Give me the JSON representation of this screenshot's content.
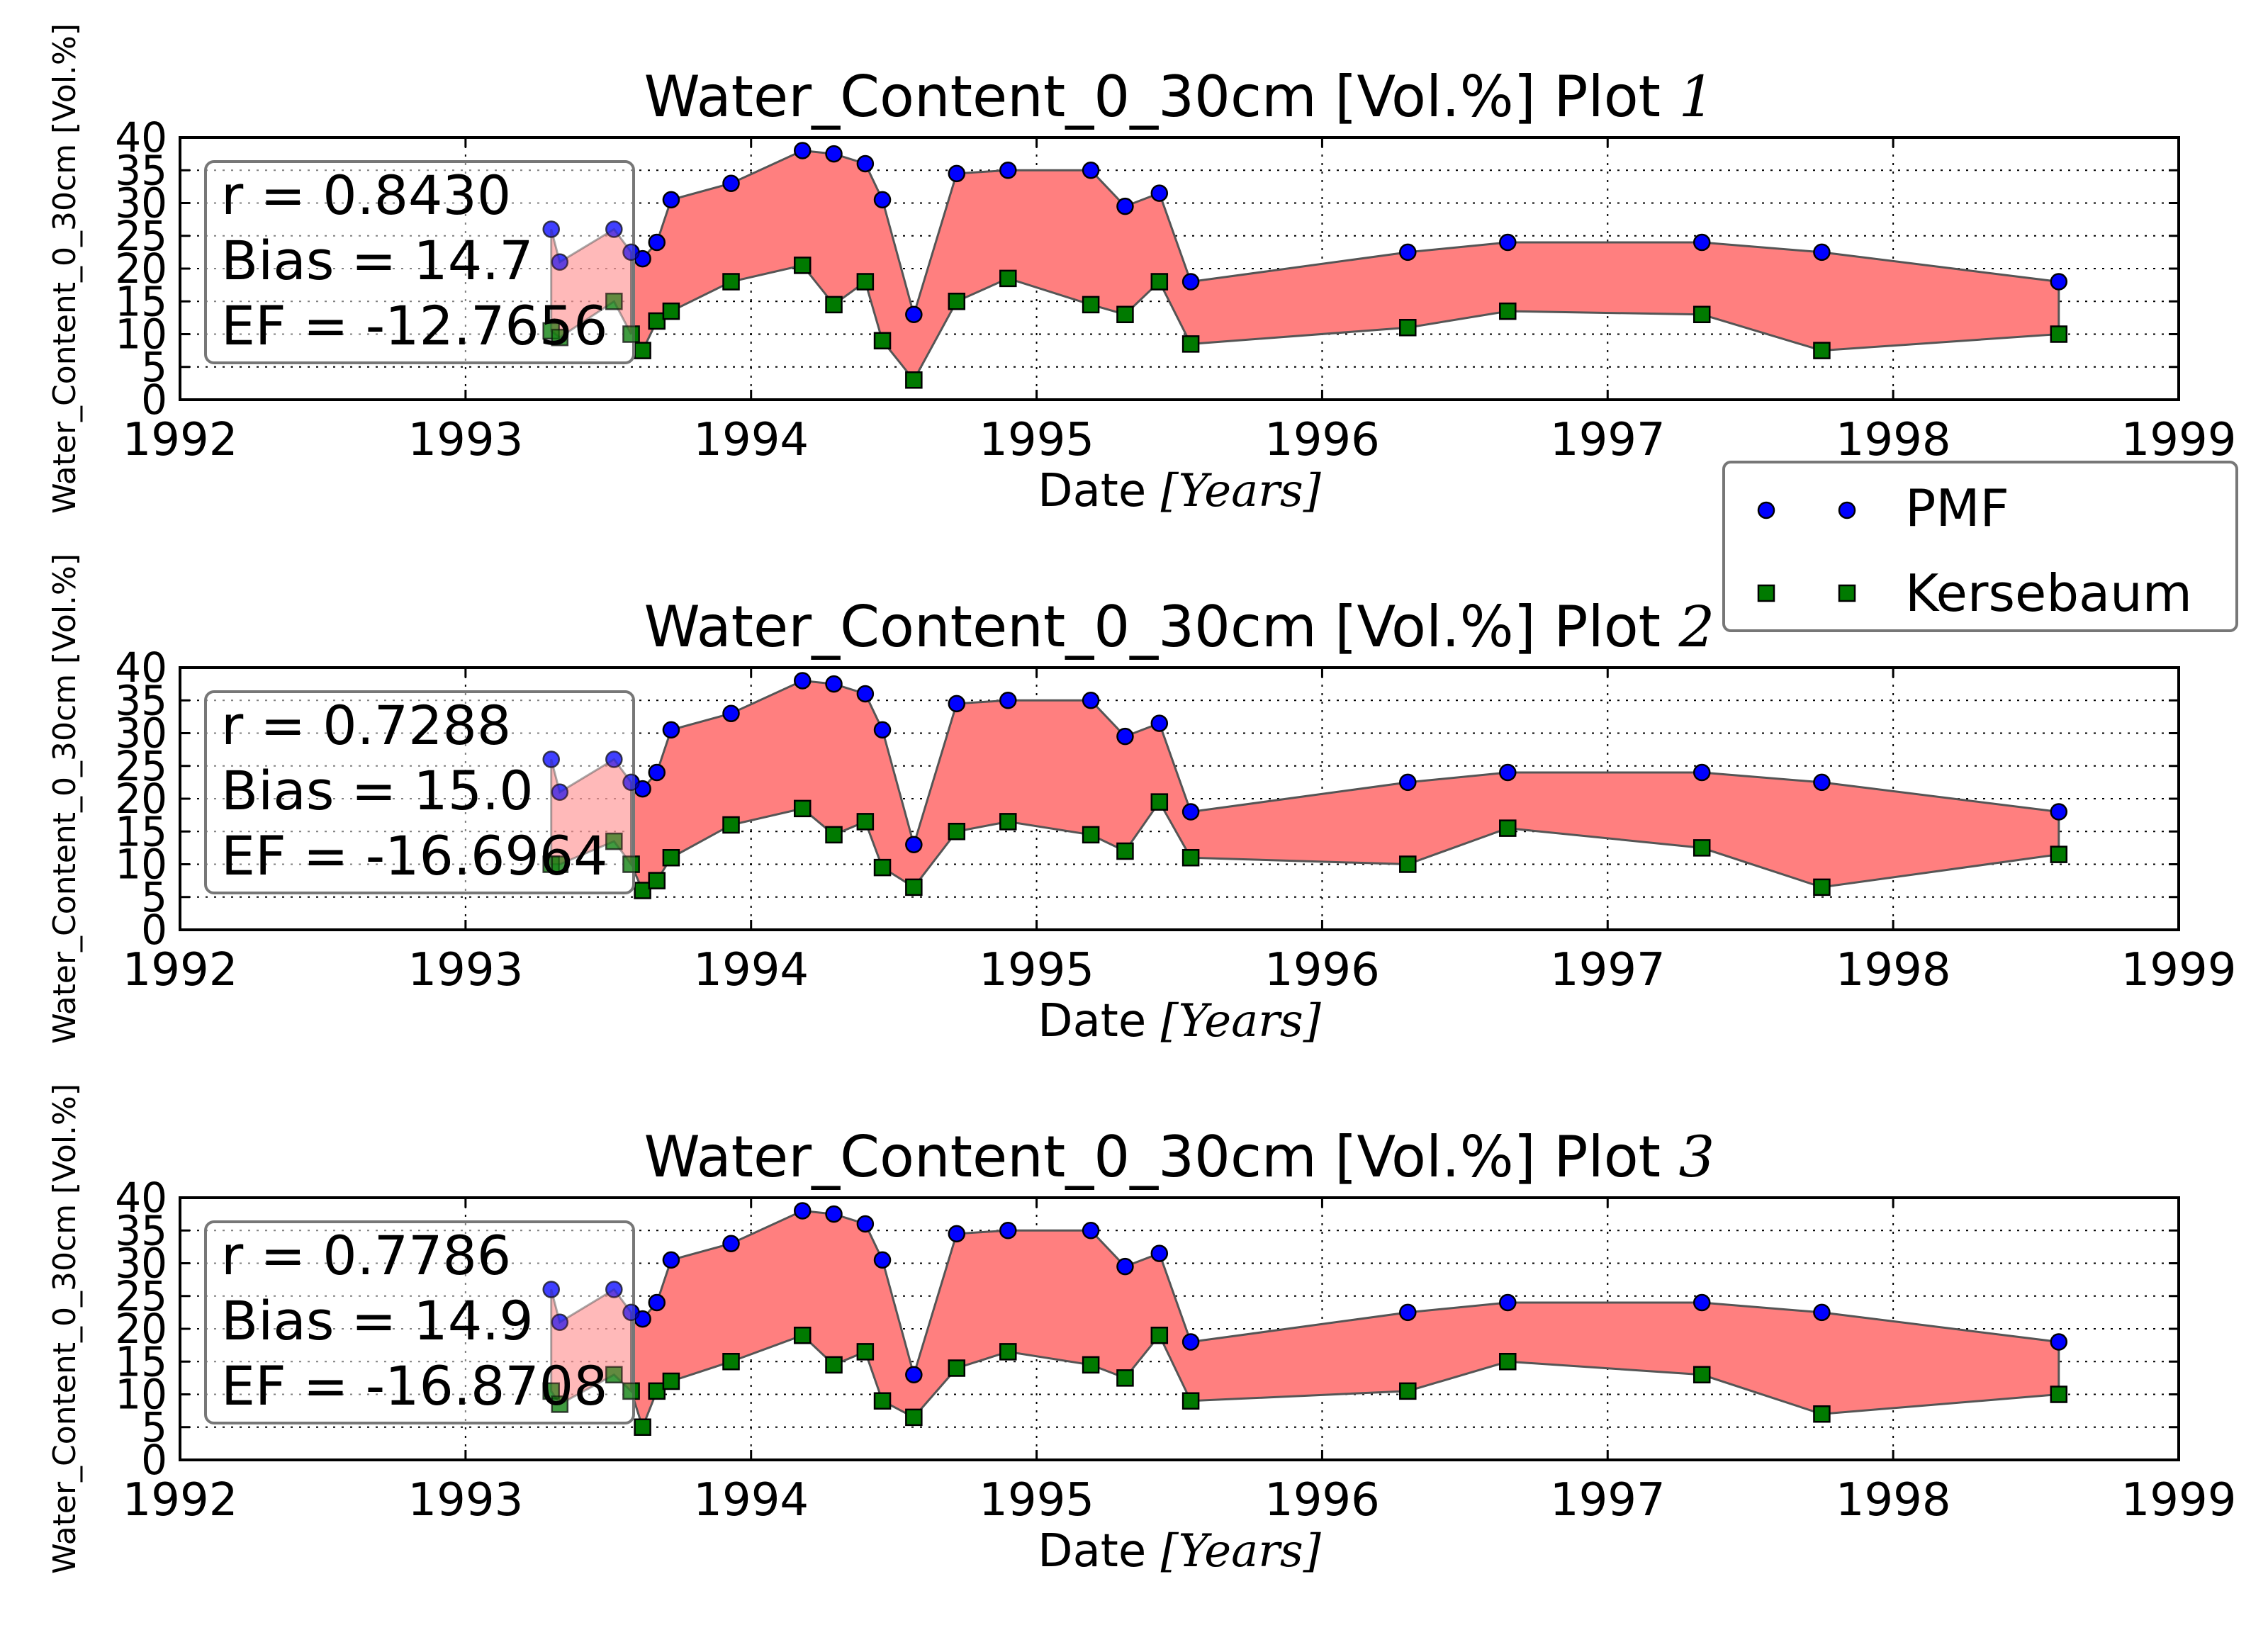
{
  "colors": {
    "pmf": "#0000ff",
    "kersebaum": "#007a00",
    "fill": "#ff7f7f",
    "fill_faint": "#ffbfbf"
  },
  "legend": {
    "entries": [
      "PMF",
      "Kersebaum"
    ],
    "placement": "right, between plot 1 and plot 2"
  },
  "chart_data": [
    {
      "type": "scatter",
      "title": "Water_Content_0_30cm [Vol.%] Plot ",
      "title_suffix": "1",
      "xlabel": "Date ",
      "xlabel_unit": "[Years]",
      "ylabel": "Water_Content_0_30cm [Vol.%]",
      "xlim": [
        1992,
        1999
      ],
      "ylim": [
        0,
        40
      ],
      "xticks": [
        "1992",
        "1993",
        "1994",
        "1995",
        "1996",
        "1997",
        "1998",
        "1999"
      ],
      "yticks": [
        "0",
        "5",
        "10",
        "15",
        "20",
        "25",
        "30",
        "35",
        "40"
      ],
      "grid": true,
      "stats": [
        "r = 0.8430",
        "Bias = 14.7",
        "EF = -12.7656"
      ],
      "x": [
        1993.3,
        1993.33,
        1993.52,
        1993.58,
        1993.62,
        1993.67,
        1993.72,
        1993.93,
        1994.18,
        1994.29,
        1994.4,
        1994.46,
        1994.57,
        1994.72,
        1994.9,
        1995.19,
        1995.31,
        1995.43,
        1995.54,
        1996.3,
        1996.65,
        1997.33,
        1997.75,
        1998.58
      ],
      "series": [
        {
          "name": "PMF",
          "values": [
            26,
            21,
            26,
            22.5,
            21.5,
            24,
            30.5,
            33,
            38,
            37.5,
            36,
            30.5,
            13,
            34.5,
            35,
            35,
            29.5,
            31.5,
            18,
            22.5,
            24,
            24,
            22.5,
            18
          ]
        },
        {
          "name": "Kersebaum",
          "values": [
            10.5,
            9.5,
            15,
            10,
            7.5,
            12,
            13.5,
            18,
            20.5,
            14.5,
            18,
            9,
            3,
            15,
            18.5,
            14.5,
            13,
            18,
            8.5,
            11,
            13.5,
            13,
            7.5,
            10
          ]
        }
      ]
    },
    {
      "type": "scatter",
      "title": "Water_Content_0_30cm [Vol.%] Plot ",
      "title_suffix": "2",
      "xlabel": "Date ",
      "xlabel_unit": "[Years]",
      "ylabel": "Water_Content_0_30cm [Vol.%]",
      "xlim": [
        1992,
        1999
      ],
      "ylim": [
        0,
        40
      ],
      "xticks": [
        "1992",
        "1993",
        "1994",
        "1995",
        "1996",
        "1997",
        "1998",
        "1999"
      ],
      "yticks": [
        "0",
        "5",
        "10",
        "15",
        "20",
        "25",
        "30",
        "35",
        "40"
      ],
      "grid": true,
      "stats": [
        "r = 0.7288",
        "Bias = 15.0",
        "EF = -16.6964"
      ],
      "x": [
        1993.3,
        1993.33,
        1993.52,
        1993.58,
        1993.62,
        1993.67,
        1993.72,
        1993.93,
        1994.18,
        1994.29,
        1994.4,
        1994.46,
        1994.57,
        1994.72,
        1994.9,
        1995.19,
        1995.31,
        1995.43,
        1995.54,
        1996.3,
        1996.65,
        1997.33,
        1997.75,
        1998.58
      ],
      "series": [
        {
          "name": "PMF",
          "values": [
            26,
            21,
            26,
            22.5,
            21.5,
            24,
            30.5,
            33,
            38,
            37.5,
            36,
            30.5,
            13,
            34.5,
            35,
            35,
            29.5,
            31.5,
            18,
            22.5,
            24,
            24,
            22.5,
            18
          ]
        },
        {
          "name": "Kersebaum",
          "values": [
            10,
            10,
            13.5,
            10,
            6,
            7.5,
            11,
            16,
            18.5,
            14.5,
            16.5,
            9.5,
            6.5,
            15,
            16.5,
            14.5,
            12,
            19.5,
            11,
            10,
            15.5,
            12.5,
            6.5,
            11.5
          ]
        }
      ]
    },
    {
      "type": "scatter",
      "title": "Water_Content_0_30cm [Vol.%] Plot ",
      "title_suffix": "3",
      "xlabel": "Date ",
      "xlabel_unit": "[Years]",
      "ylabel": "Water_Content_0_30cm [Vol.%]",
      "xlim": [
        1992,
        1999
      ],
      "ylim": [
        0,
        40
      ],
      "xticks": [
        "1992",
        "1993",
        "1994",
        "1995",
        "1996",
        "1997",
        "1998",
        "1999"
      ],
      "yticks": [
        "0",
        "5",
        "10",
        "15",
        "20",
        "25",
        "30",
        "35",
        "40"
      ],
      "grid": true,
      "stats": [
        "r = 0.7786",
        "Bias = 14.9",
        "EF = -16.8708"
      ],
      "x": [
        1993.3,
        1993.33,
        1993.52,
        1993.58,
        1993.62,
        1993.67,
        1993.72,
        1993.93,
        1994.18,
        1994.29,
        1994.4,
        1994.46,
        1994.57,
        1994.72,
        1994.9,
        1995.19,
        1995.31,
        1995.43,
        1995.54,
        1996.3,
        1996.65,
        1997.33,
        1997.75,
        1998.58
      ],
      "series": [
        {
          "name": "PMF",
          "values": [
            26,
            21,
            26,
            22.5,
            21.5,
            24,
            30.5,
            33,
            38,
            37.5,
            36,
            30.5,
            13,
            34.5,
            35,
            35,
            29.5,
            31.5,
            18,
            22.5,
            24,
            24,
            22.5,
            18
          ]
        },
        {
          "name": "Kersebaum",
          "values": [
            10.5,
            8.5,
            13,
            10.5,
            5,
            10.5,
            12,
            15,
            19,
            14.5,
            16.5,
            9,
            6.5,
            14,
            16.5,
            14.5,
            12.5,
            19,
            9,
            10.5,
            15,
            13,
            7,
            10
          ]
        }
      ]
    }
  ]
}
